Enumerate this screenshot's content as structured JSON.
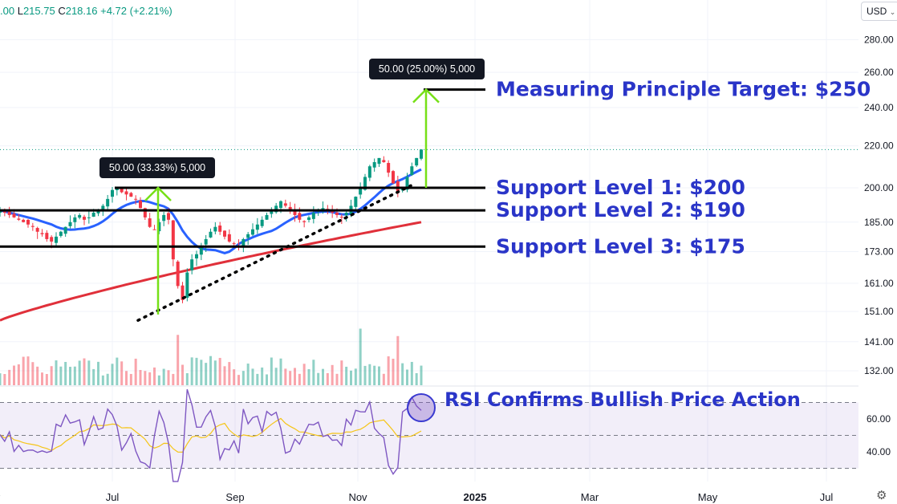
{
  "header": {
    "open_fragment": ".00",
    "low_label": "L",
    "low_value": "215.75",
    "close_label": "C",
    "close_value": "218.16",
    "change": "+4.72 (+2.21%)"
  },
  "currency_button": {
    "label": "USD",
    "icon": "chevron-down-icon"
  },
  "settings_icon": "gear-icon",
  "colors": {
    "up": "#089981",
    "down": "#f23645",
    "ma_short": "#2962ff",
    "ma_long": "#e0303a",
    "annotation": "#2a35c8",
    "arrow": "#76e017",
    "rsi": "#7e57c2",
    "rsi_ma": "#f5c518"
  },
  "chart_data": {
    "type": "candlestick",
    "price_axis_ticks": [
      "280.00",
      "260.00",
      "240.00",
      "220.00",
      "200.00",
      "185.00",
      "173.00",
      "161.00",
      "151.00",
      "141.00",
      "132.00"
    ],
    "rsi_axis_ticks": [
      "60.00",
      "40.00"
    ],
    "time_axis_ticks": [
      "y",
      "Jul",
      "Sep",
      "Nov",
      "2025",
      "Mar",
      "May",
      "Jul"
    ],
    "last_close": 218.16,
    "support_levels": [
      {
        "label": "Support Level 1: $200",
        "price": 200
      },
      {
        "label": "Support Level 2: $190",
        "price": 190
      },
      {
        "label": "Support Level 3: $175",
        "price": 175
      }
    ],
    "target": {
      "label": "Measuring Principle Target: $250",
      "price": 250
    },
    "measure_boxes": [
      {
        "label": "50.00 (33.33%) 5,000",
        "from": 150,
        "to": 200
      },
      {
        "label": "50.00 (25.00%) 5,000",
        "from": 200,
        "to": 250
      }
    ],
    "rsi_annotation": "RSI Confirms Bullish Price Action",
    "approx_closes": [
      190,
      189,
      188,
      187,
      186,
      185,
      184,
      183,
      181,
      180,
      178,
      177,
      179,
      181,
      183,
      185,
      187,
      188,
      186,
      187,
      189,
      190,
      192,
      195,
      199,
      200,
      198,
      197,
      196,
      195,
      191,
      187,
      183,
      182,
      185,
      188,
      186,
      170,
      160,
      155,
      165,
      170,
      172,
      175,
      178,
      181,
      183,
      181,
      179,
      177,
      176,
      175,
      178,
      180,
      182,
      184,
      186,
      188,
      190,
      192,
      194,
      192,
      190,
      188,
      186,
      185,
      187,
      189,
      190,
      191,
      190,
      189,
      188,
      187,
      189,
      192,
      196,
      200,
      205,
      210,
      212,
      214,
      212,
      207,
      202,
      198,
      200,
      205,
      210,
      214,
      218.16
    ]
  }
}
